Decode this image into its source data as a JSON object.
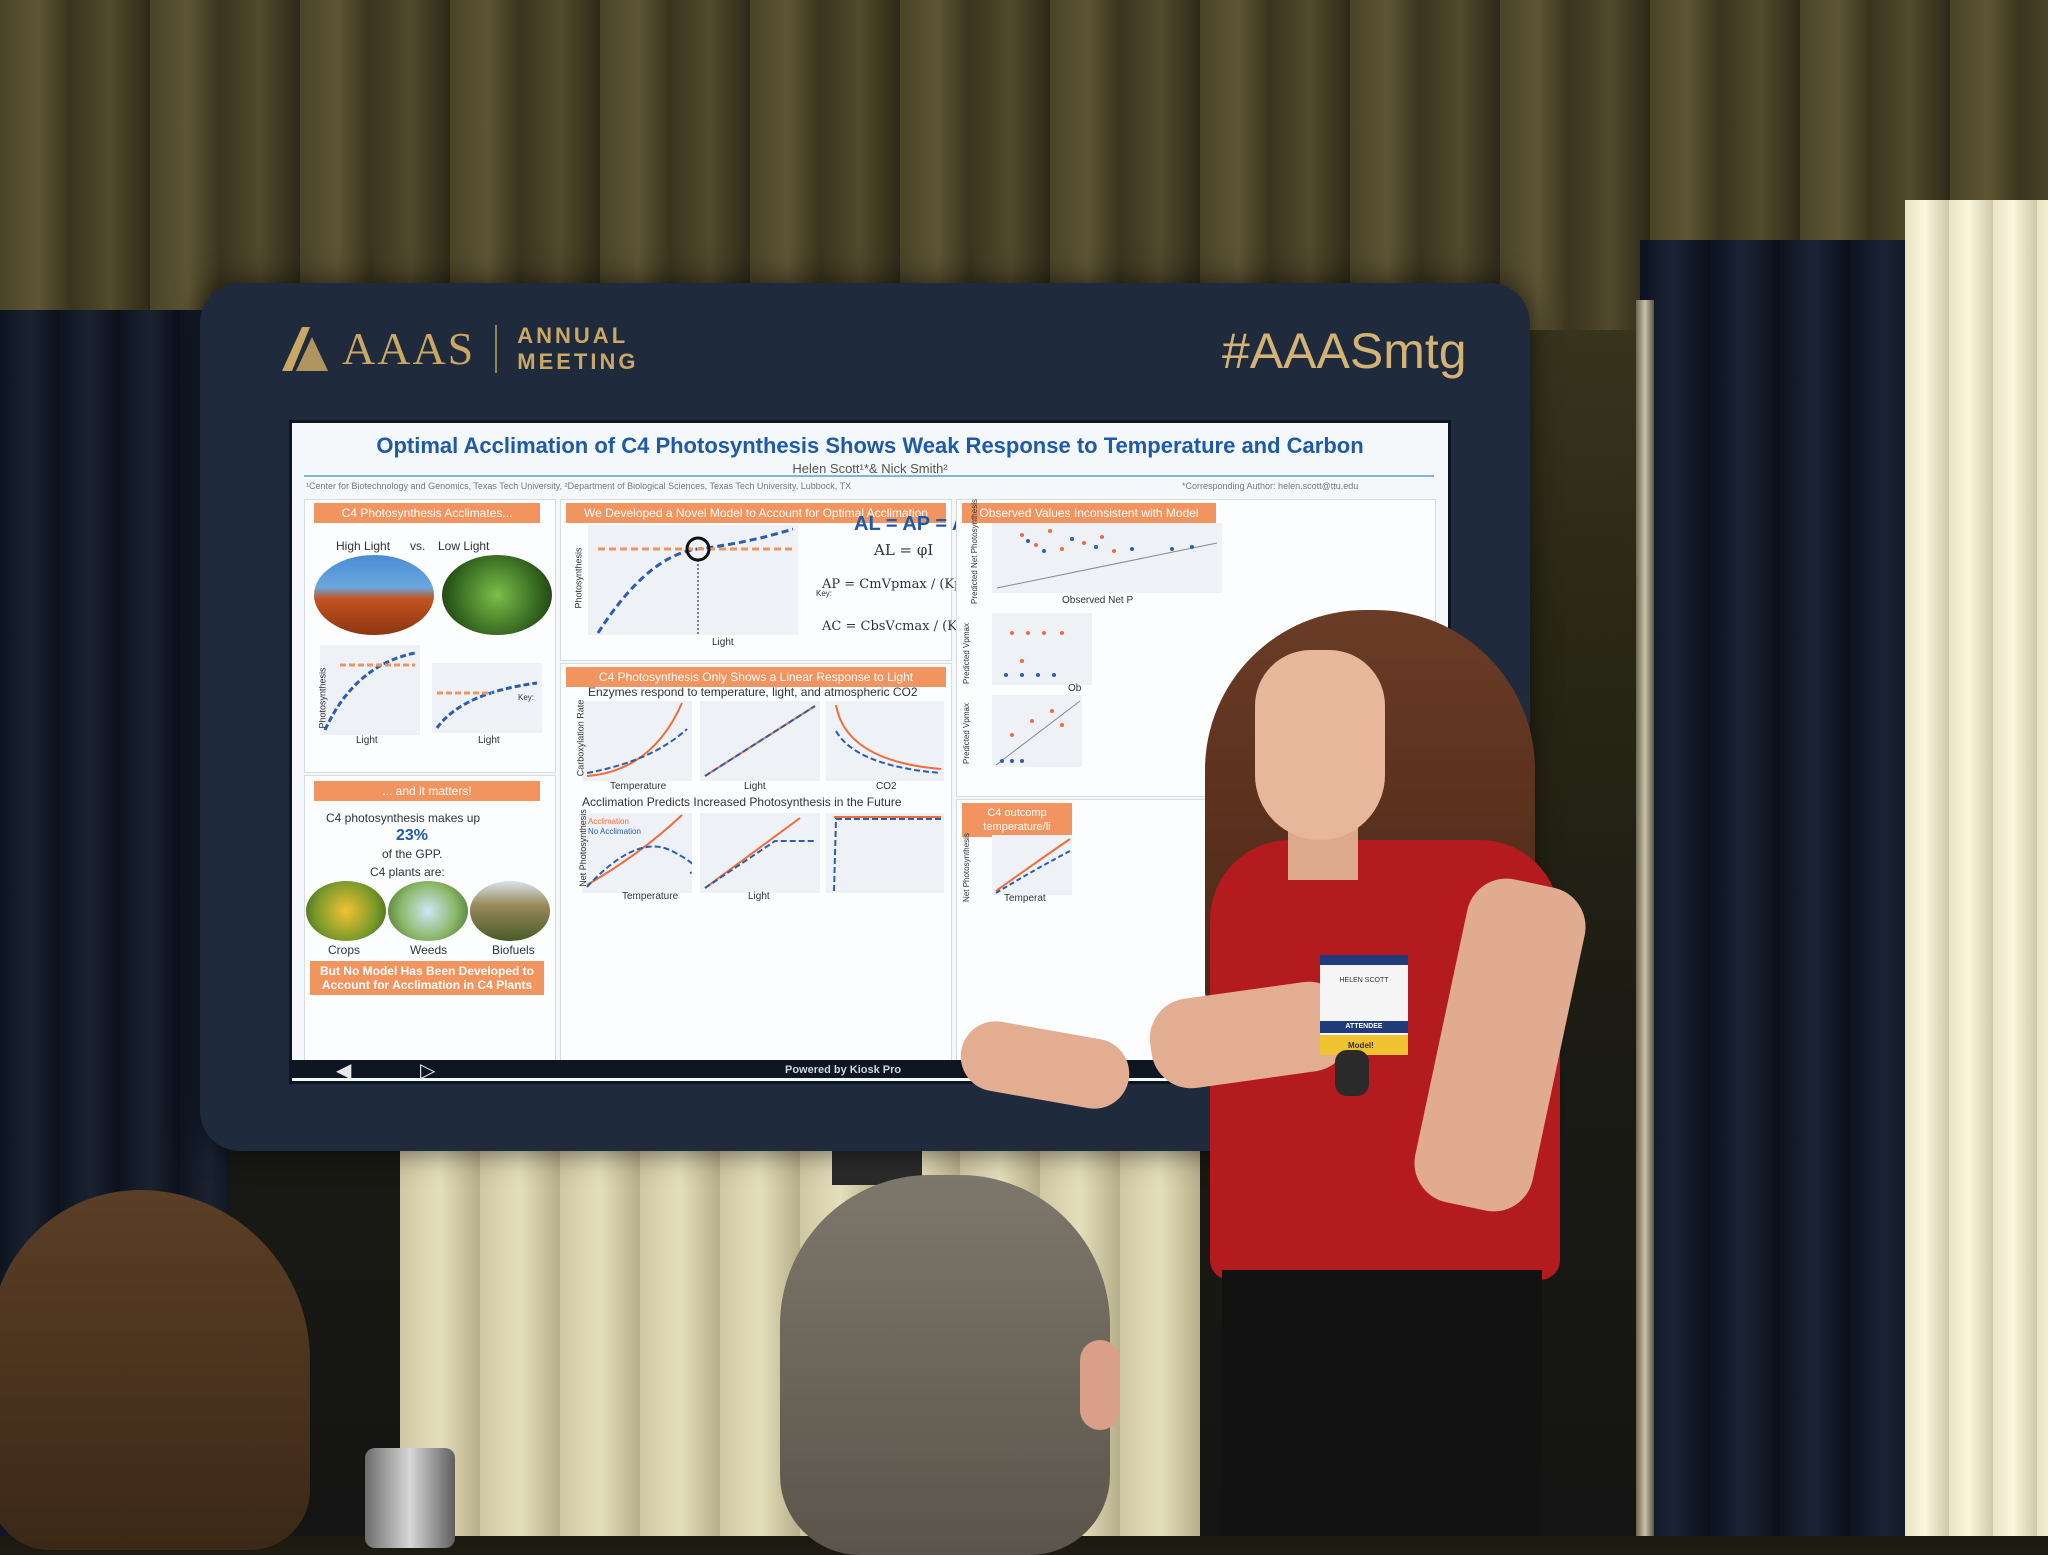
{
  "kiosk": {
    "brand_name": "AAAS",
    "brand_subtitle_line1": "ANNUAL",
    "brand_subtitle_line2": "MEETING",
    "hashtag": "#AAASmtg",
    "powered_by": "Powered by Kiosk Pro"
  },
  "poster": {
    "title": "Optimal Acclimation of C4 Photosynthesis Shows Weak Response to Temperature and Carbon",
    "authors": "Helen Scott¹*& Nick Smith²",
    "affiliations": "¹Center for Biotechnology and Genomics, Texas Tech University, ²Department of Biological Sciences, Texas Tech University, Lubbock, TX",
    "corresponding": "*Corresponding Author: helen.scott@ttu.edu",
    "left": {
      "banner1": "C4 Photosynthesis Acclimates...",
      "high_light": "High Light",
      "vs": "vs.",
      "low_light": "Low Light",
      "y_label": "Photosynthesis",
      "x_label_1": "Light",
      "x_label_2": "Light",
      "key": "Key:",
      "banner2": "... and it matters!",
      "stat_line1": "C4 photosynthesis makes up",
      "stat_value": "23%",
      "stat_line2": "of the GPP.",
      "plants_are": "C4 plants are:",
      "crops": "Crops",
      "weeds": "Weeds",
      "biofuels": "Biofuels",
      "bottom_banner": "But No Model Has Been Developed to Account for Acclimation in C4 Plants"
    },
    "middle": {
      "banner1": "We Developed a Novel Model to Account for Optimal Acclimation",
      "y_label": "Photosynthesis",
      "x_label": "Light",
      "key": "Key:",
      "eq_main": "AL = AP = AC",
      "eq_l": "AL = φI",
      "eq_p": "AP = CmVpmax / (Kp + Cm)",
      "eq_c": "AC = CbsVcmax / (Kr + Cbs)",
      "banner2": "C4 Photosynthesis Only Shows a Linear Response to Light",
      "enzymes": "Enzymes respond to temperature, light, and atmospheric CO2",
      "carbox_label": "Carboxylation Rate",
      "temperature": "Temperature",
      "light": "Light",
      "co2": "CO2",
      "acclimation_heading": "Acclimation Predicts Increased Photosynthesis in the Future",
      "net_label": "Net Photosynthesis",
      "key_acclimation": "Acclimation",
      "key_no_acclimation": "No Acclimation"
    },
    "right": {
      "banner1": "Observed Values Inconsistent with Model",
      "pred_net": "Predicted Net Photosynthesis",
      "obs_net": "Observed Net P",
      "pred_vmax": "Predicted Vpmax",
      "obs": "Ob",
      "pred_vmax2": "Predicted Vpmax",
      "banner2": "C4 outcomp temperature/li",
      "net_label": "Net Photosynthesis",
      "temperature": "Temperat"
    }
  },
  "badge": {
    "name": "HELEN SCOTT",
    "role": "ATTENDEE",
    "tag": "Model!"
  },
  "colors": {
    "title_blue": "#1e5aa8",
    "banner_orange": "#f2945f",
    "kiosk_frame": "#1f2a3c",
    "brand_gold": "#c9a866",
    "dress_red": "#b31b1f"
  }
}
